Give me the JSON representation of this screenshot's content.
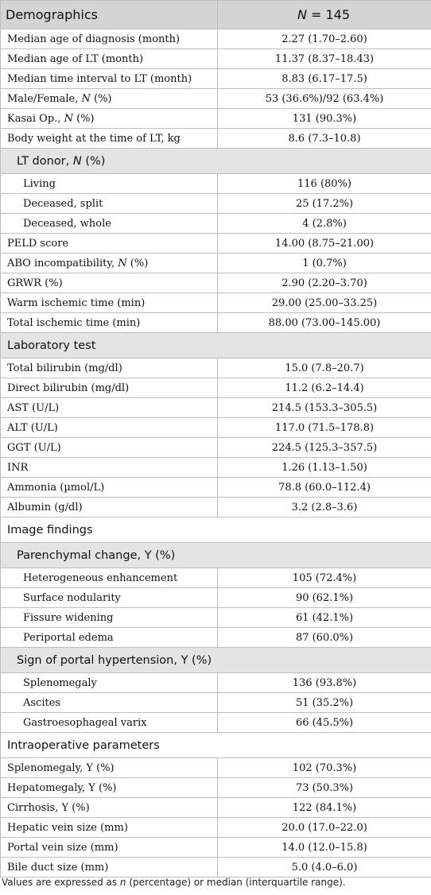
{
  "header": {
    "left": "Demographics",
    "right_italic": "N",
    "right_rest": " = 145"
  },
  "rows": {
    "median_age_dx": {
      "label": "Median age of diagnosis (month)",
      "value": "2.27 (1.70–2.60)"
    },
    "median_age_lt": {
      "label": "Median age of LT (month)",
      "value": "11.37 (8.37–18.43)"
    },
    "median_interval": {
      "label": "Median time interval to LT (month)",
      "value": "8.83 (6.17–17.5)"
    },
    "male_female": {
      "label_pre": "Male/Female, ",
      "label_italic": "N",
      "label_post": " (%)",
      "value": "53 (36.6%)/92 (63.4%)"
    },
    "kasai": {
      "label_pre": "Kasai Op., ",
      "label_italic": "N",
      "label_post": " (%)",
      "value": "131 (90.3%)"
    },
    "body_weight": {
      "label": "Body weight at the time of LT, kg",
      "value": "8.6 (7.3–10.8)"
    },
    "lt_donor": {
      "label_pre": "LT donor, ",
      "label_italic": "N",
      "label_post": " (%)"
    },
    "living": {
      "label": "Living",
      "value": "116 (80%)"
    },
    "deceased_split": {
      "label": "Deceased, split",
      "value": "25 (17.2%)"
    },
    "deceased_whole": {
      "label": "Deceased, whole",
      "value": "4 (2.8%)"
    },
    "peld": {
      "label": "PELD score",
      "value": "14.00 (8.75–21.00)"
    },
    "abo": {
      "label_pre": "ABO incompatibility, ",
      "label_italic": "N",
      "label_post": " (%)",
      "value": "1 (0.7%)"
    },
    "grwr": {
      "label": "GRWR (%)",
      "value": "2.90 (2.20–3.70)"
    },
    "warm_ischemic": {
      "label": "Warm ischemic time (min)",
      "value": "29.00 (25.00–33.25)"
    },
    "total_ischemic": {
      "label": "Total ischemic time (min)",
      "value": "88.00 (73.00–145.00)"
    },
    "laboratory": {
      "label": "Laboratory test"
    },
    "total_bilirubin": {
      "label": "Total bilirubin (mg/dl)",
      "value": "15.0 (7.8–20.7)"
    },
    "direct_bilirubin": {
      "label": "Direct bilirubin (mg/dl)",
      "value": "11.2 (6.2–14.4)"
    },
    "ast": {
      "label": "AST (U/L)",
      "value": "214.5 (153.3–305.5)"
    },
    "alt": {
      "label": "ALT (U/L)",
      "value": "117.0 (71.5–178.8)"
    },
    "ggt": {
      "label": "GGT (U/L)",
      "value": "224.5 (125.3–357.5)"
    },
    "inr": {
      "label": "INR",
      "value": "1.26 (1.13–1.50)"
    },
    "ammonia": {
      "label": "Ammonia (µmol/L)",
      "value": "78.8 (60.0–112.4)"
    },
    "albumin": {
      "label": "Albumin (g/dl)",
      "value": "3.2 (2.8–3.6)"
    },
    "image_findings": {
      "label": "Image findings"
    },
    "parenchymal": {
      "label": "Parenchymal change, Y (%)"
    },
    "heterogeneous": {
      "label": "Heterogeneous enhancement",
      "value": "105 (72.4%)"
    },
    "surface_nodularity": {
      "label": "Surface nodularity",
      "value": "90 (62.1%)"
    },
    "fissure": {
      "label": "Fissure widening",
      "value": "61 (42.1%)"
    },
    "periportal": {
      "label": "Periportal edema",
      "value": "87 (60.0%)"
    },
    "portal_htn": {
      "label": "Sign of portal hypertension, Y (%)"
    },
    "splenomegaly_img": {
      "label": "Splenomegaly",
      "value": "136 (93.8%)"
    },
    "ascites": {
      "label": "Ascites",
      "value": "51 (35.2%)"
    },
    "varix": {
      "label": "Gastroesophageal varix",
      "value": "66 (45.5%)"
    },
    "intraop": {
      "label": "Intraoperative parameters"
    },
    "splenomegaly_op": {
      "label": "Splenomegaly, Y (%)",
      "value": "102 (70.3%)"
    },
    "hepatomegaly": {
      "label": "Hepatomegaly, Y (%)",
      "value": "73 (50.3%)"
    },
    "cirrhosis": {
      "label": "Cirrhosis, Y (%)",
      "value": "122 (84.1%)"
    },
    "hepatic_vein": {
      "label": "Hepatic vein size (mm)",
      "value": "20.0 (17.0–22.0)"
    },
    "portal_vein": {
      "label": "Portal vein size (mm)",
      "value": "14.0 (12.0–15.8)"
    },
    "bile_duct": {
      "label": "Bile duct size (mm)",
      "value": "5.0 (4.0–6.0)"
    }
  },
  "footnote": {
    "pre": "Values are expressed as ",
    "italic": "n",
    "post": " (percentage) or median (interquartile range)."
  }
}
